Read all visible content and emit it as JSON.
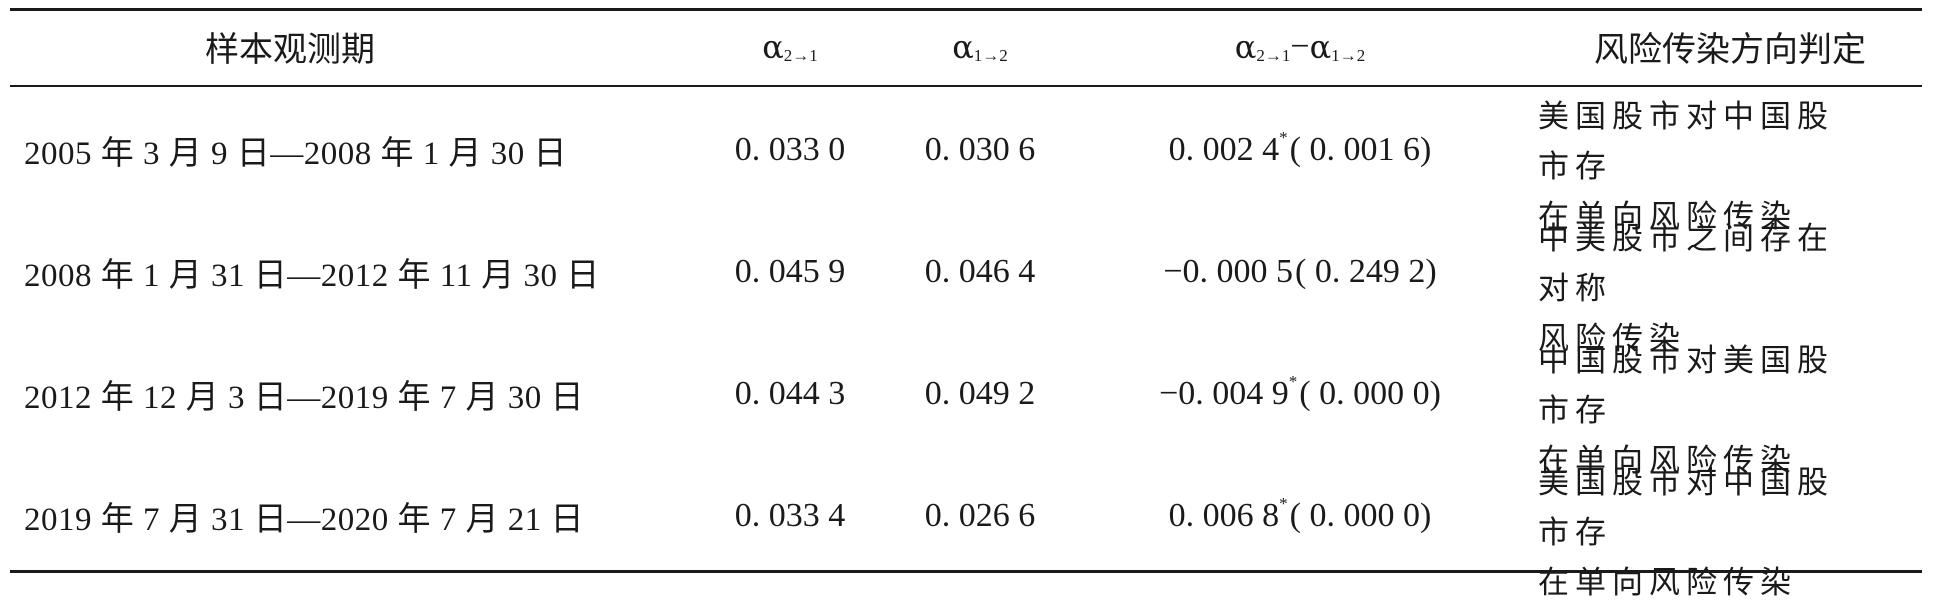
{
  "table": {
    "headers": {
      "period": "样本观测期",
      "alpha21": {
        "base": "α",
        "sub": "2→1"
      },
      "alpha12": {
        "base": "α",
        "sub": "1→2"
      },
      "diff": {
        "a_base": "α",
        "a_sub": "2→1",
        "minus": "−",
        "b_base": "α",
        "b_sub": "1→2"
      },
      "direction": "风险传染方向判定"
    },
    "rows": [
      {
        "period": "2005 年 3 月 9 日—2008 年 1 月 30 日",
        "alpha21": "0. 033 0",
        "alpha12": "0. 030 6",
        "diff_value": "0. 002 4",
        "diff_star": "*",
        "diff_p": "( 0. 001 6)",
        "direction_line1": "美国股市对中国股市存",
        "direction_line2": "在单向风险传染"
      },
      {
        "period": "2008 年 1 月 31 日—2012 年 11 月 30 日",
        "alpha21": "0. 045 9",
        "alpha12": "0. 046 4",
        "diff_value": "−0. 000 5",
        "diff_star": "",
        "diff_p": "( 0. 249 2)",
        "direction_line1": "中美股市之间存在对称",
        "direction_line2": "风险传染"
      },
      {
        "period": "2012 年 12 月 3 日—2019 年 7 月 30 日",
        "alpha21": "0. 044 3",
        "alpha12": "0. 049 2",
        "diff_value": "−0. 004 9",
        "diff_star": "*",
        "diff_p": "( 0. 000 0)",
        "direction_line1": "中国股市对美国股市存",
        "direction_line2": "在单向风险传染"
      },
      {
        "period": "2019 年 7 月 31 日—2020 年 7 月 21 日",
        "alpha21": "0. 033 4",
        "alpha12": "0. 026 6",
        "diff_value": "0. 006 8",
        "diff_star": "*",
        "diff_p": "( 0. 000 0)",
        "direction_line1": "美国股市对中国股市存",
        "direction_line2": "在单向风险传染"
      }
    ]
  }
}
